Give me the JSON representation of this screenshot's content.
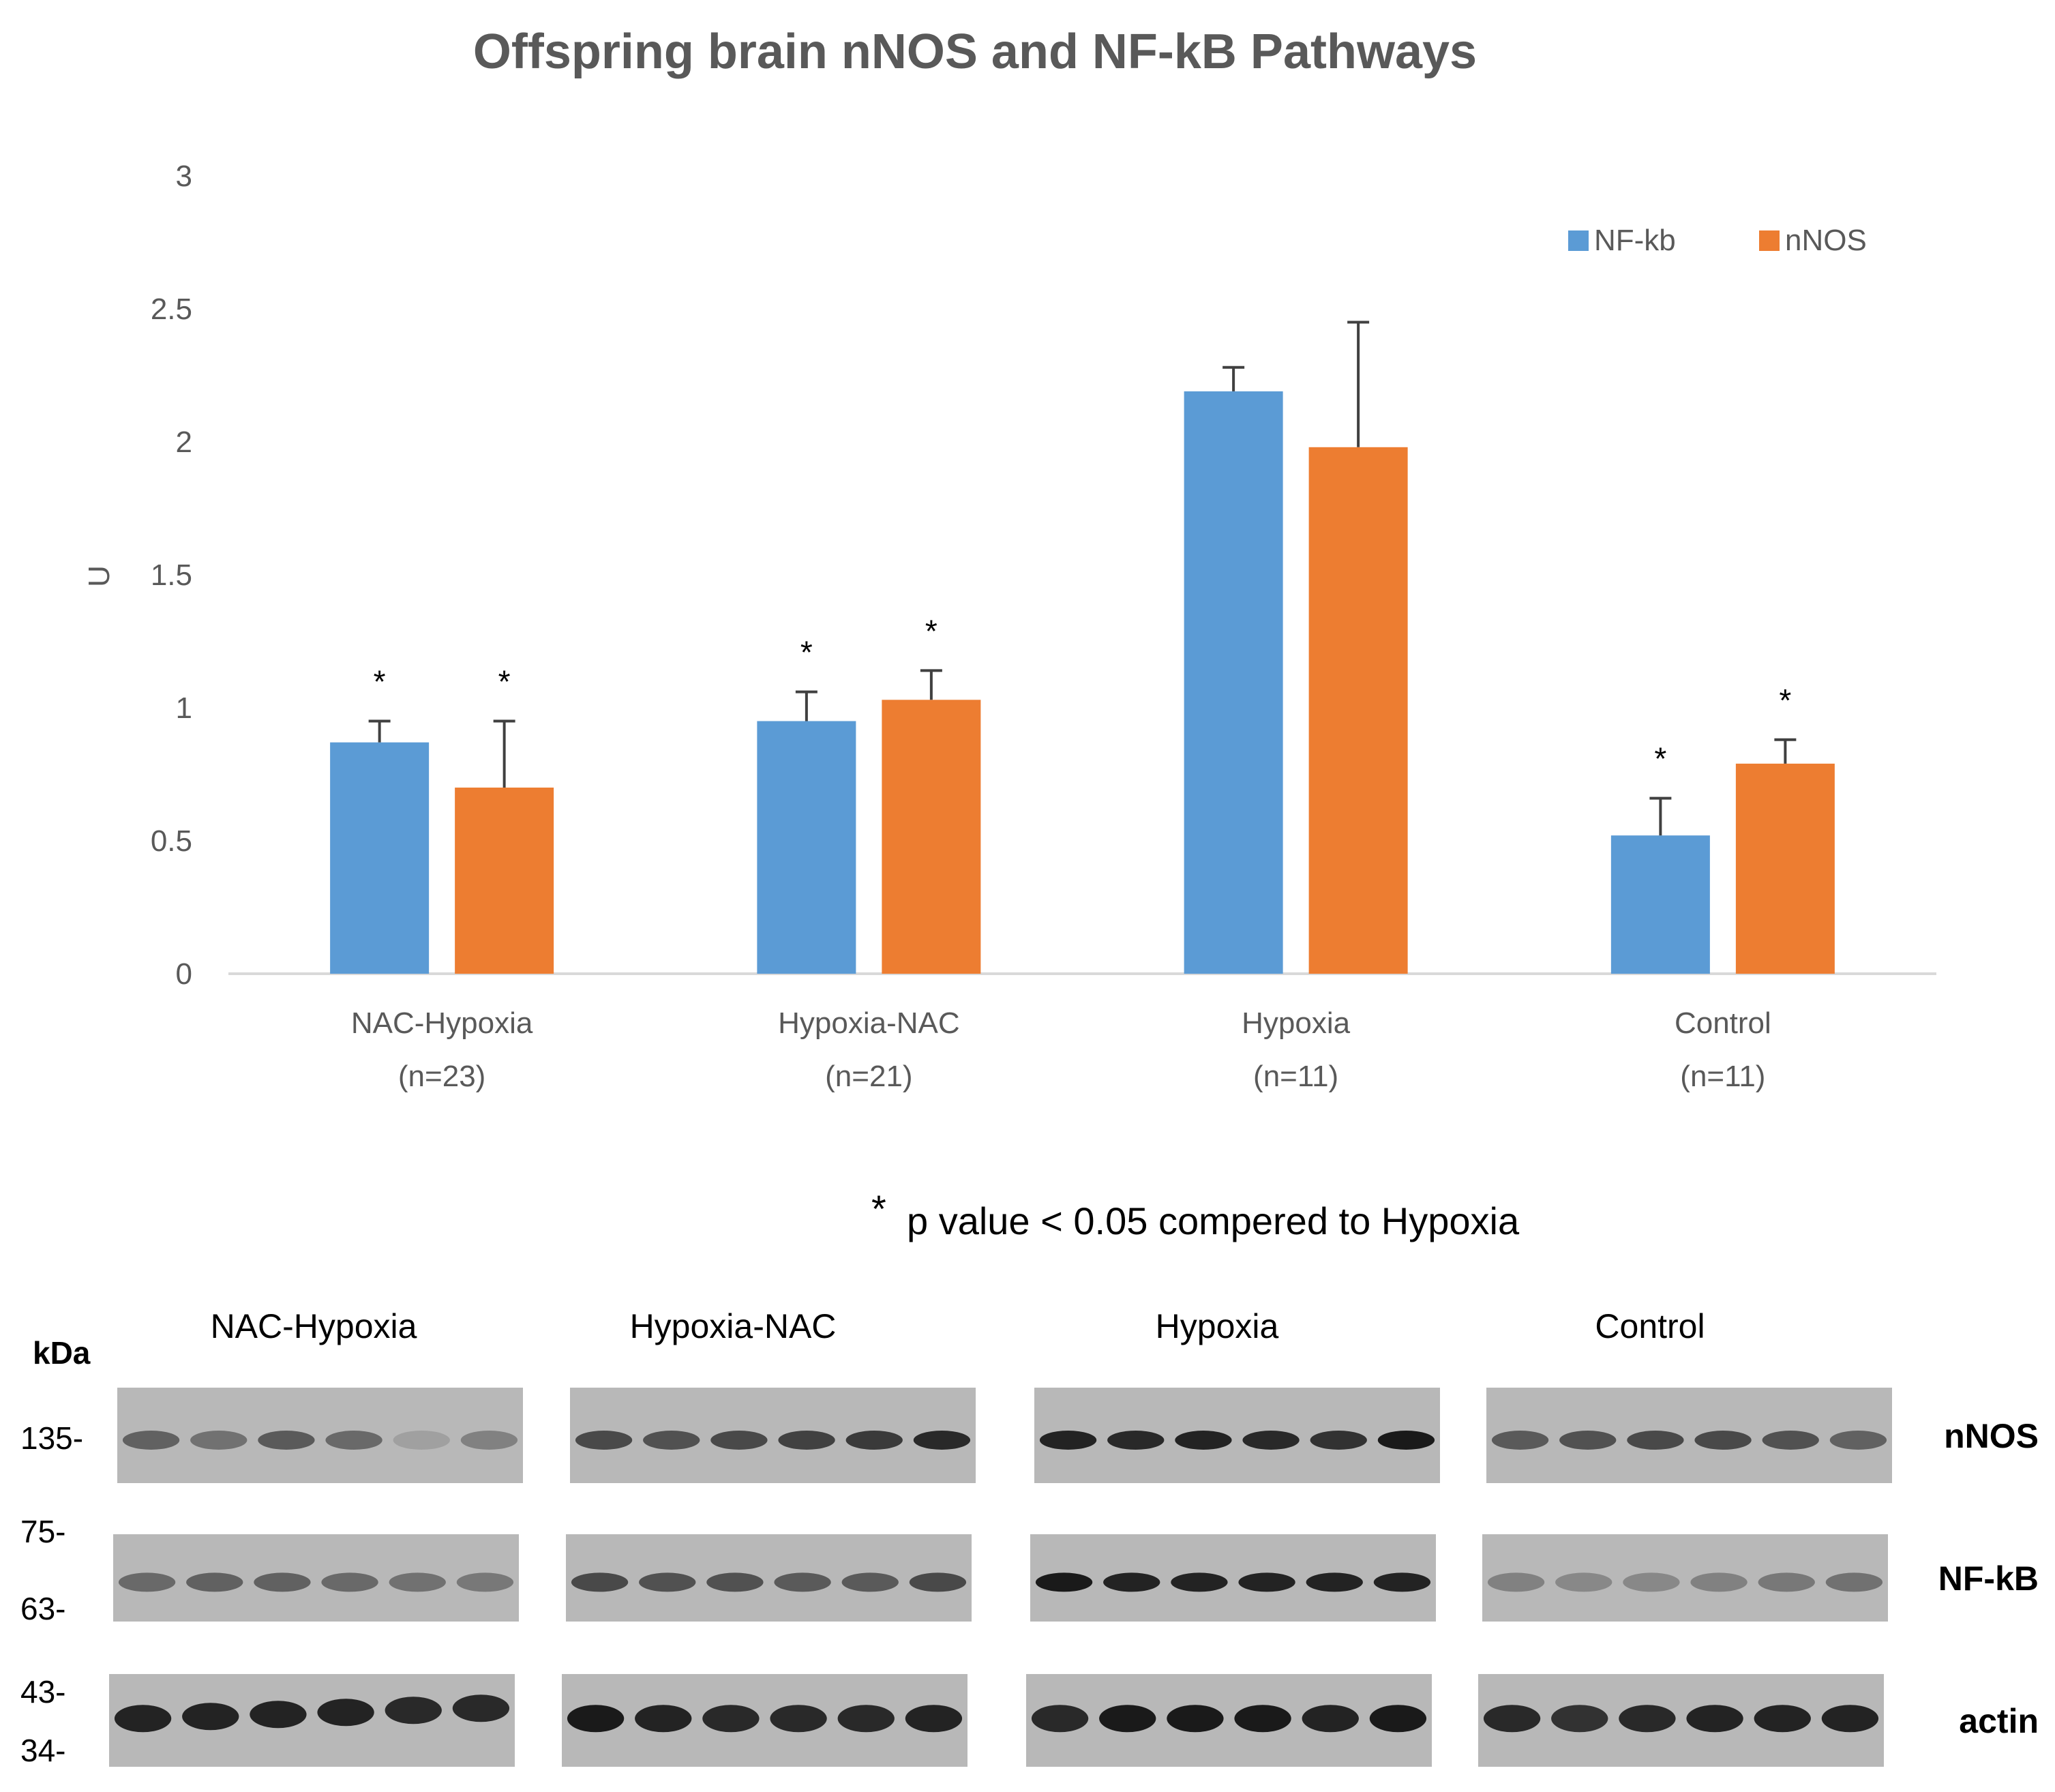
{
  "chart_data": {
    "type": "bar",
    "title": "Offspring brain nNOS and NF-kB Pathways",
    "ylabel": "U",
    "ylim": [
      0,
      3
    ],
    "yticks": [
      0,
      0.5,
      1,
      1.5,
      2,
      2.5,
      3
    ],
    "grid": false,
    "legend_position": "top-right",
    "categories": [
      {
        "name": "NAC-Hypoxia",
        "n": "(n=23)"
      },
      {
        "name": "Hypoxia-NAC",
        "n": "(n=21)"
      },
      {
        "name": "Hypoxia",
        "n": "(n=11)"
      },
      {
        "name": "Control",
        "n": "(n=11)"
      }
    ],
    "series": [
      {
        "name": "NF-kb",
        "color": "#5B9BD5",
        "values": [
          0.87,
          0.95,
          2.19,
          0.52
        ],
        "errors": [
          0.08,
          0.11,
          0.09,
          0.14
        ],
        "significant": [
          true,
          true,
          false,
          true
        ]
      },
      {
        "name": "nNOS",
        "color": "#ED7D31",
        "values": [
          0.7,
          1.03,
          1.98,
          0.79
        ],
        "errors": [
          0.25,
          0.11,
          0.47,
          0.09
        ],
        "significant": [
          true,
          true,
          false,
          true
        ]
      }
    ],
    "significance_symbol": "*",
    "footnote": "p value < 0.05 compered to Hypoxia"
  },
  "blot": {
    "unit_label": "kDa",
    "groups": [
      "NAC-Hypoxia",
      "Hypoxia-NAC",
      "Hypoxia",
      "Control"
    ],
    "rows": [
      {
        "label": "nNOS",
        "markers": [
          "135-"
        ],
        "intensity": [
          [
            0.55,
            0.45,
            0.6,
            0.5,
            0.15,
            0.35
          ],
          [
            0.7,
            0.65,
            0.7,
            0.75,
            0.8,
            0.9
          ],
          [
            0.95,
            0.9,
            0.95,
            0.9,
            0.85,
            1.0
          ],
          [
            0.6,
            0.65,
            0.7,
            0.7,
            0.65,
            0.55
          ]
        ]
      },
      {
        "label": "NF-kB",
        "markers": [
          "75-",
          "63-"
        ],
        "intensity": [
          [
            0.5,
            0.55,
            0.55,
            0.5,
            0.45,
            0.4
          ],
          [
            0.7,
            0.65,
            0.65,
            0.6,
            0.6,
            0.7
          ],
          [
            1.0,
            0.95,
            0.95,
            0.95,
            0.95,
            0.95
          ],
          [
            0.35,
            0.3,
            0.3,
            0.35,
            0.4,
            0.45
          ]
        ]
      },
      {
        "label": "actin",
        "markers": [
          "43-",
          "34-"
        ],
        "intensity": [
          [
            0.95,
            0.95,
            0.95,
            0.95,
            0.9,
            0.9
          ],
          [
            1.0,
            0.95,
            0.9,
            0.9,
            0.9,
            0.95
          ],
          [
            0.9,
            1.0,
            1.0,
            1.0,
            0.95,
            1.0
          ],
          [
            0.9,
            0.85,
            0.9,
            0.95,
            0.95,
            0.95
          ]
        ]
      }
    ]
  }
}
